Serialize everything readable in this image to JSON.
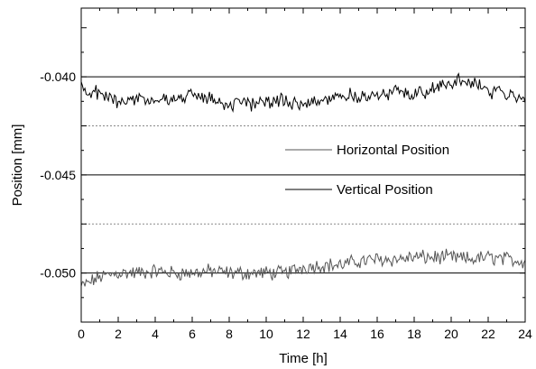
{
  "chart_data": {
    "type": "line",
    "title": "",
    "xlabel": "Time [h]",
    "ylabel": "Position [mm]",
    "xlim": [
      0,
      24
    ],
    "ylim": [
      -0.0525,
      -0.0365
    ],
    "x_ticks": [
      0,
      2,
      4,
      6,
      8,
      10,
      12,
      14,
      16,
      18,
      20,
      22,
      24
    ],
    "x_tick_labels": [
      "0",
      "2",
      "4",
      "6",
      "8",
      "10",
      "12",
      "14",
      "16",
      "18",
      "20",
      "22",
      "24"
    ],
    "y_ticks": [
      -0.04,
      -0.045,
      -0.05
    ],
    "y_tick_labels": [
      "-0.040",
      "-0.045",
      "-0.050"
    ],
    "gridlines": {
      "solid_y": [
        -0.04,
        -0.045,
        -0.05
      ],
      "dotted_y": [
        -0.0425,
        -0.0475
      ]
    },
    "legend_placement": "center",
    "series": [
      {
        "name": "Horizontal Position",
        "color": "#555555",
        "x": [
          0,
          1,
          2,
          3,
          4,
          5,
          6,
          7,
          8,
          9,
          10,
          11,
          12,
          13,
          14,
          15,
          16,
          17,
          18,
          19,
          20,
          21,
          22,
          23,
          24
        ],
        "values": [
          -0.0507,
          -0.0502,
          -0.05,
          -0.05,
          -0.0499,
          -0.05,
          -0.05,
          -0.0499,
          -0.05,
          -0.05,
          -0.05,
          -0.05,
          -0.0497,
          -0.0496,
          -0.0496,
          -0.0494,
          -0.0493,
          -0.0493,
          -0.0492,
          -0.0492,
          -0.0492,
          -0.0493,
          -0.0492,
          -0.0493,
          -0.0494
        ]
      },
      {
        "name": "Vertical Position",
        "color": "#000000",
        "x": [
          0,
          1,
          2,
          3,
          4,
          5,
          6,
          7,
          8,
          9,
          10,
          11,
          12,
          13,
          14,
          15,
          16,
          17,
          18,
          19,
          20,
          21,
          22,
          23,
          24
        ],
        "values": [
          -0.0406,
          -0.0409,
          -0.0412,
          -0.0411,
          -0.0412,
          -0.0412,
          -0.0409,
          -0.0411,
          -0.0414,
          -0.0414,
          -0.0412,
          -0.0413,
          -0.0413,
          -0.0412,
          -0.0409,
          -0.041,
          -0.041,
          -0.0408,
          -0.0408,
          -0.0406,
          -0.0403,
          -0.0402,
          -0.0407,
          -0.0409,
          -0.041
        ]
      }
    ]
  }
}
